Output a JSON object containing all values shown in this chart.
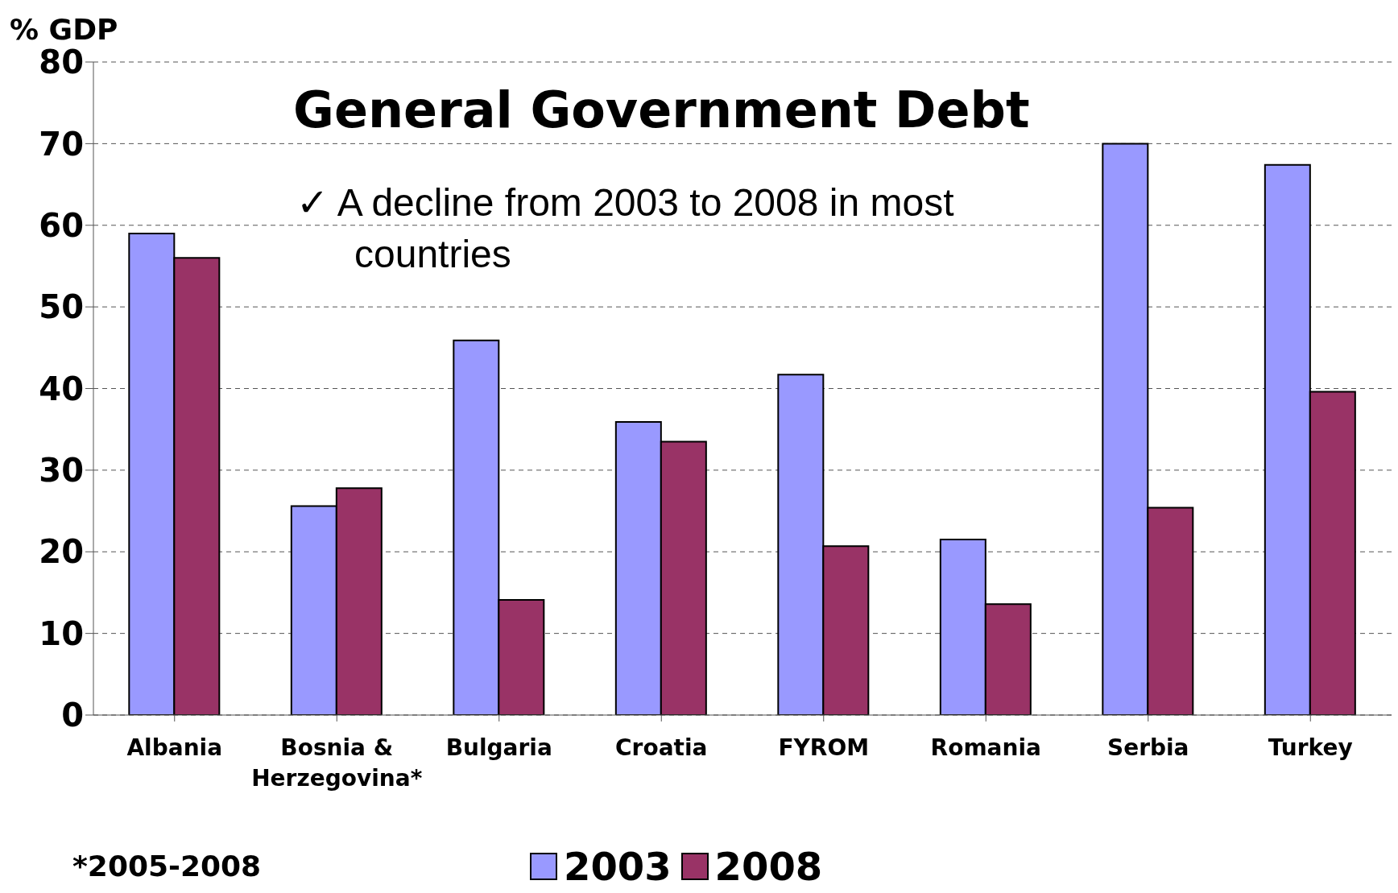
{
  "chart_data": {
    "type": "bar",
    "title": "General Government Debt",
    "ylabel": "% GDP",
    "categories": [
      "Albania",
      "Bosnia & Herzegovina*",
      "Bulgaria",
      "Croatia",
      "FYROM",
      "Romania",
      "Serbia",
      "Turkey"
    ],
    "series": [
      {
        "name": "2003",
        "color": "#9999ff",
        "values": [
          59,
          25.6,
          45.9,
          35.9,
          41.7,
          21.5,
          70,
          67.4
        ]
      },
      {
        "name": "2008",
        "color": "#993366",
        "values": [
          56,
          27.8,
          14.1,
          33.5,
          20.7,
          13.6,
          25.4,
          39.6
        ]
      }
    ],
    "ylim": [
      0,
      80
    ],
    "yticks": [
      0,
      10,
      20,
      30,
      40,
      50,
      60,
      70,
      80
    ],
    "grid": "y",
    "legend": "bottom",
    "annotations": [
      "✓ A decline from 2003 to 2008 in most countries",
      "*2005-2008"
    ]
  }
}
